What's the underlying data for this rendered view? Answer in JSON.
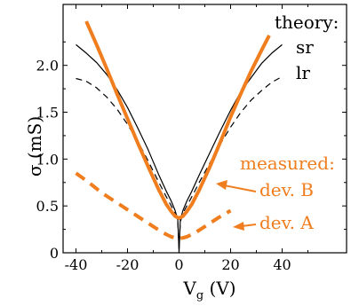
{
  "chart_data": {
    "type": "line",
    "xlabel": "V",
    "xlabel_sub": "g",
    "xlabel_unit": " (V)",
    "ylabel": "σ (mS)",
    "xlim": [
      -45,
      65
    ],
    "ylim": [
      0,
      2.65
    ],
    "x_ticks": [
      -40,
      -20,
      0,
      20,
      40
    ],
    "x_tick_labels": [
      "-40",
      "-20",
      "0",
      "20",
      "40"
    ],
    "y_ticks": [
      0,
      0.5,
      1.0,
      1.5,
      2.0
    ],
    "y_tick_labels": [
      "0",
      "0.5",
      "1.0",
      "1.5",
      "2.0"
    ],
    "grid": false,
    "colors": {
      "measured": "#f07d1e",
      "theory": "#000000"
    },
    "annotations": {
      "theory": "theory:",
      "sr": "sr",
      "lr": "lr",
      "measured": "measured:",
      "dev_b": "dev. B",
      "dev_a": "dev. A"
    },
    "series": [
      {
        "style": "theory-solid",
        "x": [
          -40,
          -36,
          -32,
          -28,
          -24,
          -20,
          -16,
          -12,
          -8,
          -5,
          -3,
          -1.5,
          -0.5,
          0,
          0.5,
          1.5,
          3,
          5,
          8,
          12,
          16,
          20,
          24,
          28,
          32,
          36,
          40
        ],
        "y": [
          2.22,
          2.13,
          2.03,
          1.9,
          1.74,
          1.55,
          1.33,
          1.1,
          0.84,
          0.66,
          0.55,
          0.45,
          0.35,
          0.0,
          0.35,
          0.45,
          0.55,
          0.66,
          0.84,
          1.07,
          1.3,
          1.52,
          1.72,
          1.87,
          2.02,
          2.13,
          2.22
        ]
      },
      {
        "style": "theory-dashed",
        "x": [
          -40,
          -36,
          -32,
          -28,
          -24,
          -20,
          -16,
          -12,
          -8,
          -5,
          -3,
          -1.5,
          -0.5,
          0,
          0.5,
          1.5,
          3,
          5,
          8,
          12,
          16,
          20,
          24,
          28,
          32,
          36,
          40
        ],
        "y": [
          1.86,
          1.83,
          1.76,
          1.66,
          1.53,
          1.37,
          1.19,
          0.98,
          0.76,
          0.6,
          0.5,
          0.42,
          0.33,
          0.05,
          0.33,
          0.42,
          0.5,
          0.6,
          0.76,
          0.96,
          1.16,
          1.34,
          1.5,
          1.63,
          1.73,
          1.82,
          1.88
        ]
      },
      {
        "style": "measured-solid",
        "x": [
          -36,
          -32,
          -28,
          -24,
          -20,
          -16,
          -12,
          -8,
          -5,
          -3,
          -1.5,
          0,
          1.5,
          3,
          5,
          8,
          12,
          16,
          20,
          24,
          28,
          32,
          35
        ],
        "y": [
          2.47,
          2.22,
          1.96,
          1.69,
          1.43,
          1.17,
          0.92,
          0.68,
          0.52,
          0.44,
          0.39,
          0.37,
          0.39,
          0.44,
          0.52,
          0.68,
          0.92,
          1.18,
          1.45,
          1.7,
          1.94,
          2.16,
          2.32
        ]
      },
      {
        "style": "measured-dashed",
        "x": [
          -40,
          -35,
          -30,
          -25,
          -20,
          -15,
          -10,
          -6,
          -3,
          0,
          3,
          6,
          10,
          15,
          20
        ],
        "y": [
          0.85,
          0.75,
          0.64,
          0.55,
          0.46,
          0.37,
          0.28,
          0.21,
          0.17,
          0.15,
          0.17,
          0.21,
          0.28,
          0.37,
          0.45
        ]
      }
    ]
  }
}
